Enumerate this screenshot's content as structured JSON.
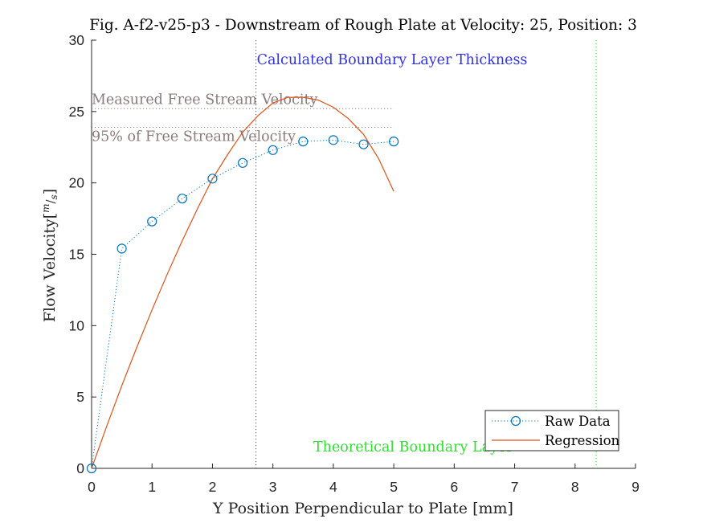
{
  "chart_data": {
    "type": "line",
    "title": "Fig. A-f2-v25-p3 - Downstream of Rough Plate at Velocity: 25, Position: 3",
    "xlabel": "Y Position Perpendicular to Plate [mm]",
    "ylabel": "Flow Velocity[m/s]",
    "ylabel_main": "Flow Velocity[",
    "ylabel_sup_m": "m",
    "ylabel_slash": "/",
    "ylabel_sub_s": "s",
    "ylabel_close": "]",
    "xlim": [
      0,
      9
    ],
    "ylim": [
      0,
      30
    ],
    "xticks": [
      0,
      1,
      2,
      3,
      4,
      5,
      6,
      7,
      8,
      9
    ],
    "yticks": [
      0,
      5,
      10,
      15,
      20,
      25,
      30
    ],
    "grid": false,
    "legend_position": "bottom-right",
    "series": [
      {
        "name": "Raw Data",
        "style": "dotted-line-circle-markers",
        "color": "#0072BD",
        "x": [
          0,
          0.5,
          1,
          1.5,
          2,
          2.5,
          3,
          3.5,
          4,
          4.5,
          5
        ],
        "y": [
          0,
          15.4,
          17.3,
          18.9,
          20.3,
          21.4,
          22.3,
          22.9,
          23.0,
          22.7,
          22.9
        ]
      },
      {
        "name": "Regression",
        "style": "solid",
        "color": "#D95319",
        "x": [
          0,
          0.25,
          0.5,
          0.75,
          1,
          1.25,
          1.5,
          1.75,
          2,
          2.25,
          2.5,
          2.75,
          3,
          3.25,
          3.5,
          3.75,
          4,
          4.25,
          4.5,
          4.75,
          5
        ],
        "y": [
          0,
          2.95,
          5.79,
          8.5,
          11.1,
          13.58,
          15.94,
          18.17,
          20.28,
          21.98,
          23.55,
          24.7,
          25.6,
          26.0,
          26.0,
          25.8,
          25.3,
          24.5,
          23.4,
          21.7,
          19.4
        ]
      }
    ],
    "reference_lines": [
      {
        "label": "Measured Free Stream Velocity",
        "orientation": "horizontal",
        "value": 25.2,
        "x_extent": [
          0,
          5
        ],
        "color": "#8B7B7B",
        "style": "dotted"
      },
      {
        "label": "95% of Free Stream Velocity",
        "orientation": "horizontal",
        "value": 23.9,
        "x_extent": [
          0,
          5
        ],
        "color": "#8B7B7B",
        "style": "dotted"
      },
      {
        "label": "Calculated Boundary Layer Thickness",
        "orientation": "vertical",
        "value": 2.72,
        "color": "#3333DD",
        "line_color": "#555555",
        "style": "dotted"
      },
      {
        "label": "Theoretical Boundary Layer",
        "orientation": "vertical",
        "value": 8.35,
        "color": "#33DD33",
        "style": "dotted"
      }
    ]
  }
}
